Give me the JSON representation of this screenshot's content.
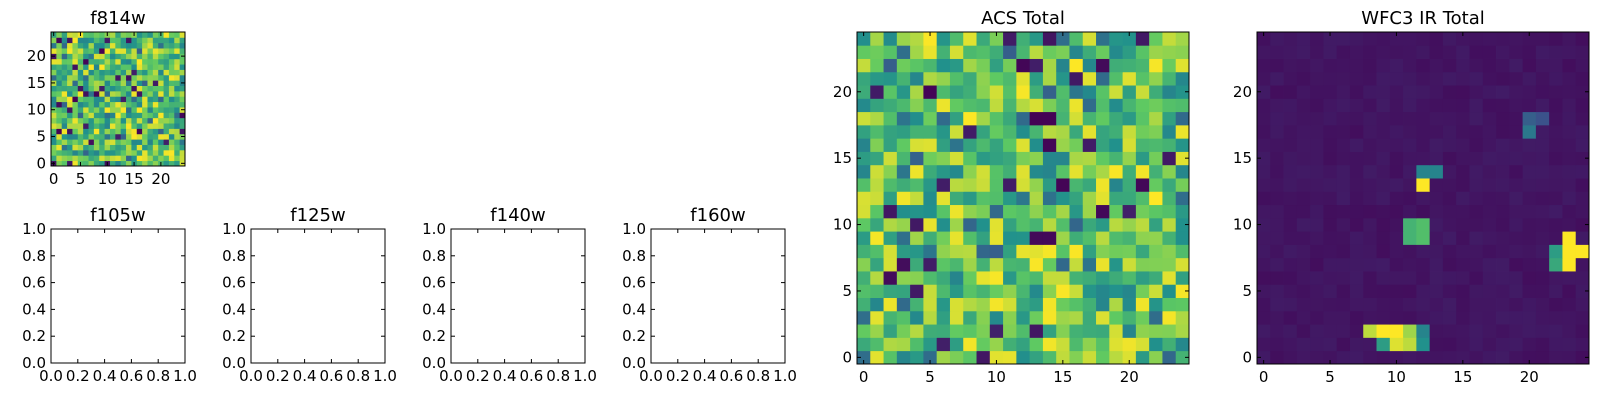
{
  "figure": {
    "background": "#ffffff",
    "colormap": "viridis",
    "colormap_stops": [
      "#440154",
      "#3b528b",
      "#21918c",
      "#5ec962",
      "#fde725"
    ]
  },
  "chart_data": [
    {
      "type": "heatmap",
      "title": "f814w",
      "grid_size": [
        25,
        25
      ],
      "xticks": [
        0,
        5,
        10,
        15,
        20
      ],
      "yticks": [
        0,
        5,
        10,
        15,
        20
      ],
      "xlim": [
        -0.5,
        24.5
      ],
      "ylim": [
        -0.5,
        24.5
      ],
      "values": "random noise (normalized 0-1, mostly 0.45-1.0 green-yellow)"
    },
    {
      "type": "line",
      "title": "f105w",
      "xlim": [
        0.0,
        1.0
      ],
      "ylim": [
        0.0,
        1.0
      ],
      "xticks": [
        "0.0",
        "0.2",
        "0.4",
        "0.6",
        "0.8",
        "1.0"
      ],
      "yticks": [
        "0.0",
        "0.2",
        "0.4",
        "0.6",
        "0.8",
        "1.0"
      ],
      "series": []
    },
    {
      "type": "line",
      "title": "f125w",
      "xlim": [
        0.0,
        1.0
      ],
      "ylim": [
        0.0,
        1.0
      ],
      "xticks": [
        "0.0",
        "0.2",
        "0.4",
        "0.6",
        "0.8",
        "1.0"
      ],
      "yticks": [
        "0.0",
        "0.2",
        "0.4",
        "0.6",
        "0.8",
        "1.0"
      ],
      "series": []
    },
    {
      "type": "line",
      "title": "f140w",
      "xlim": [
        0.0,
        1.0
      ],
      "ylim": [
        0.0,
        1.0
      ],
      "xticks": [
        "0.0",
        "0.2",
        "0.4",
        "0.6",
        "0.8",
        "1.0"
      ],
      "yticks": [
        "0.0",
        "0.2",
        "0.4",
        "0.6",
        "0.8",
        "1.0"
      ],
      "series": []
    },
    {
      "type": "line",
      "title": "f160w",
      "xlim": [
        0.0,
        1.0
      ],
      "ylim": [
        0.0,
        1.0
      ],
      "xticks": [
        "0.0",
        "0.2",
        "0.4",
        "0.6",
        "0.8",
        "1.0"
      ],
      "yticks": [
        "0.0",
        "0.2",
        "0.4",
        "0.6",
        "0.8",
        "1.0"
      ],
      "series": []
    },
    {
      "type": "heatmap",
      "title": "ACS Total",
      "grid_size": [
        25,
        25
      ],
      "xticks": [
        0,
        5,
        10,
        15,
        20
      ],
      "yticks": [
        0,
        5,
        10,
        15,
        20
      ],
      "xlim": [
        -0.5,
        24.5
      ],
      "ylim": [
        -0.5,
        24.5
      ],
      "values": "random noise (normalized 0-1, mostly 0.45-1.0 green-yellow)"
    },
    {
      "type": "heatmap",
      "title": "WFC3 IR Total",
      "grid_size": [
        25,
        25
      ],
      "xticks": [
        0,
        5,
        10,
        15,
        20
      ],
      "yticks": [
        0,
        5,
        10,
        15,
        20
      ],
      "xlim": [
        -0.5,
        24.5
      ],
      "ylim": [
        -0.5,
        24.5
      ],
      "background_level": 0.04,
      "bright_pixels": [
        {
          "x": 8,
          "y": 2,
          "v": 0.9
        },
        {
          "x": 9,
          "y": 2,
          "v": 1.0
        },
        {
          "x": 10,
          "y": 2,
          "v": 1.0
        },
        {
          "x": 11,
          "y": 2,
          "v": 0.85
        },
        {
          "x": 12,
          "y": 2,
          "v": 0.45
        },
        {
          "x": 9,
          "y": 1,
          "v": 0.55
        },
        {
          "x": 10,
          "y": 1,
          "v": 0.95
        },
        {
          "x": 11,
          "y": 1,
          "v": 0.9
        },
        {
          "x": 12,
          "y": 1,
          "v": 0.5
        },
        {
          "x": 11,
          "y": 10,
          "v": 0.65
        },
        {
          "x": 12,
          "y": 10,
          "v": 0.7
        },
        {
          "x": 11,
          "y": 9,
          "v": 0.65
        },
        {
          "x": 12,
          "y": 9,
          "v": 0.7
        },
        {
          "x": 12,
          "y": 14,
          "v": 0.45
        },
        {
          "x": 13,
          "y": 14,
          "v": 0.45
        },
        {
          "x": 12,
          "y": 13,
          "v": 1.0
        },
        {
          "x": 20,
          "y": 18,
          "v": 0.3
        },
        {
          "x": 21,
          "y": 18,
          "v": 0.25
        },
        {
          "x": 20,
          "y": 17,
          "v": 0.4
        },
        {
          "x": 23,
          "y": 9,
          "v": 1.0
        },
        {
          "x": 22,
          "y": 8,
          "v": 0.55
        },
        {
          "x": 23,
          "y": 8,
          "v": 1.0
        },
        {
          "x": 24,
          "y": 8,
          "v": 1.0
        },
        {
          "x": 22,
          "y": 7,
          "v": 0.6
        },
        {
          "x": 23,
          "y": 7,
          "v": 1.0
        }
      ]
    }
  ]
}
